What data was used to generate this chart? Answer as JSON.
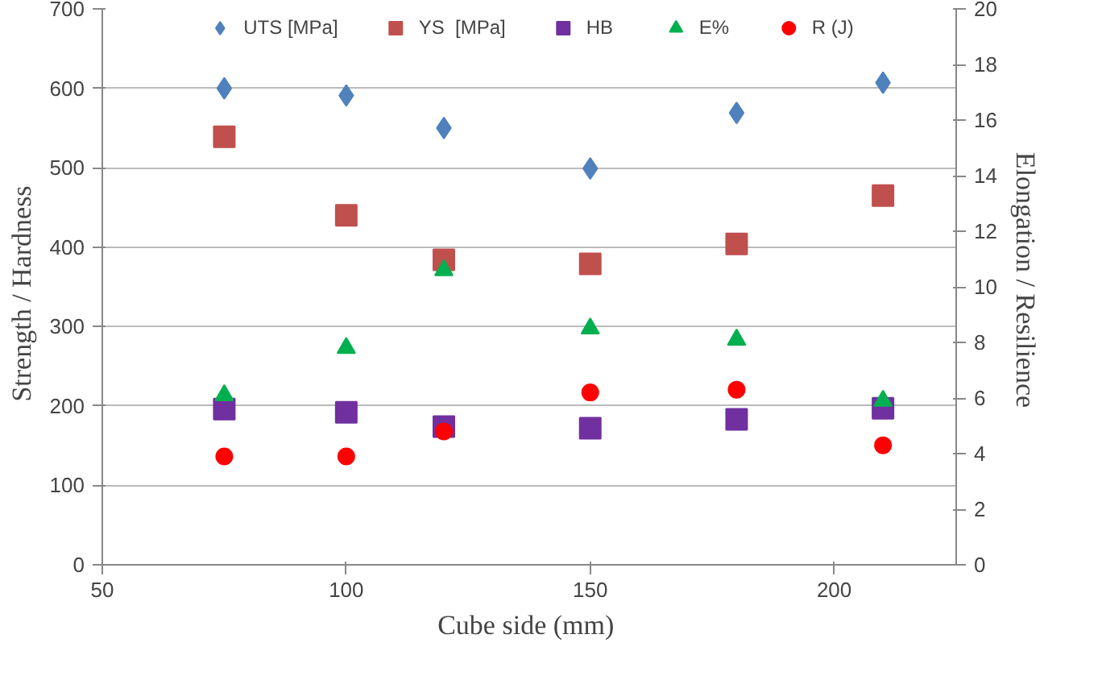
{
  "chart_data": {
    "type": "scatter",
    "xlabel": "Cube side  (mm)",
    "ylabel": "Strength  /  Hardness",
    "y2label": "Elongation  /  Resilience",
    "x": [
      75,
      100,
      120,
      150,
      180,
      210
    ],
    "xlim": [
      50,
      225
    ],
    "xticks": [
      50,
      100,
      150,
      200
    ],
    "ylim": [
      0,
      700
    ],
    "yticks": [
      0,
      100,
      200,
      300,
      400,
      500,
      600,
      700
    ],
    "y2lim": [
      0,
      20
    ],
    "y2ticks": [
      0,
      2,
      4,
      6,
      8,
      10,
      12,
      14,
      16,
      18,
      20
    ],
    "grid": "y",
    "legend": "top",
    "series": [
      {
        "name": "UTS [MPa]",
        "color": "#4f81bd",
        "marker": "diamond",
        "values": [
          600,
          591,
          550,
          499,
          569,
          607
        ]
      },
      {
        "name": "YS  [MPa]",
        "color": "#c0504d",
        "marker": "square",
        "values": [
          539,
          440,
          384,
          379,
          404,
          465
        ]
      },
      {
        "name": "HB",
        "color": "#7030a0",
        "marker": "square",
        "values": [
          196,
          192,
          174,
          172,
          183,
          197
        ]
      },
      {
        "name": "E%",
        "color": "#00b050",
        "marker": "triangle",
        "axis": "y2",
        "values": [
          6.1,
          7.8,
          10.6,
          8.5,
          8.1,
          5.9
        ]
      },
      {
        "name": "R (J)",
        "color": "#ff0000",
        "marker": "circle",
        "axis": "y2",
        "values": [
          3.9,
          3.9,
          4.8,
          6.2,
          6.3,
          4.3
        ]
      }
    ]
  }
}
